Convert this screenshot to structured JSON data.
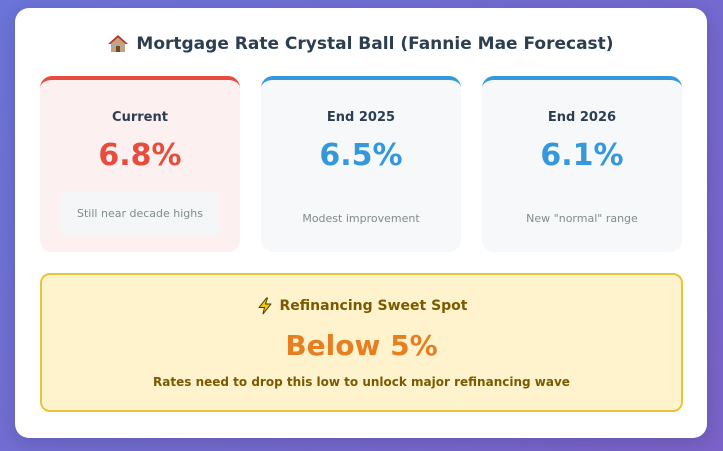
{
  "header": {
    "title": "Mortgage Rate Crystal Ball (Fannie Mae Forecast)",
    "icon": "house-icon"
  },
  "stats": [
    {
      "label": "Current",
      "value": "6.8%",
      "note": "Still near decade highs",
      "color": "#e74c3c"
    },
    {
      "label": "End 2025",
      "value": "6.5%",
      "note": "Modest improvement",
      "color": "#3498db"
    },
    {
      "label": "End 2026",
      "value": "6.1%",
      "note": "New \"normal\" range",
      "color": "#3498db"
    }
  ],
  "sweet_spot": {
    "icon": "lightning-icon",
    "title": "Refinancing Sweet Spot",
    "value": "Below 5%",
    "description": "Rates need to drop this low to unlock major refinancing wave"
  }
}
